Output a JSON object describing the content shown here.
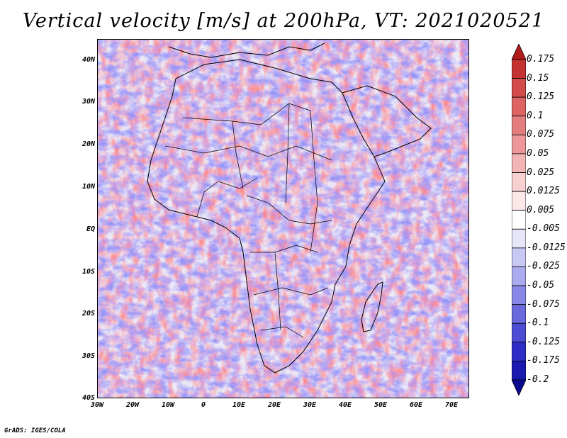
{
  "title": "Vertical velocity [m/s] at 200hPa, VT: 2021020521",
  "credit": "GrADS: IGES/COLA",
  "map": {
    "lat_labels": [
      "40N",
      "30N",
      "20N",
      "10N",
      "EQ",
      "10S",
      "20S",
      "30S",
      "40S"
    ],
    "lon_labels": [
      "30W",
      "20W",
      "10W",
      "0",
      "10E",
      "20E",
      "30E",
      "40E",
      "50E",
      "60E",
      "70E"
    ],
    "lat_range": [
      -40,
      45
    ],
    "lon_range": [
      -30,
      75
    ],
    "field": "vertical velocity",
    "level": "200hPa",
    "valid_time": "2021020521"
  },
  "colorbar": {
    "labels": [
      "0.175",
      "0.15",
      "0.125",
      "0.1",
      "0.075",
      "0.05",
      "0.025",
      "0.0125",
      "0.005",
      "-0.005",
      "-0.0125",
      "-0.025",
      "-0.05",
      "-0.075",
      "-0.1",
      "-0.125",
      "-0.175",
      "-0.2"
    ],
    "colors": [
      "#b01c1c",
      "#c43232",
      "#d24a4a",
      "#de6464",
      "#e47e7e",
      "#ec9898",
      "#f2b4b4",
      "#f8d0d0",
      "#fce8e8",
      "#ffffff",
      "#e6e6f8",
      "#c8c8f2",
      "#aaaaee",
      "#8888e6",
      "#6a6ade",
      "#4c4cd4",
      "#2e2ec6",
      "#1a1ab0",
      "#0a0a90"
    ]
  }
}
